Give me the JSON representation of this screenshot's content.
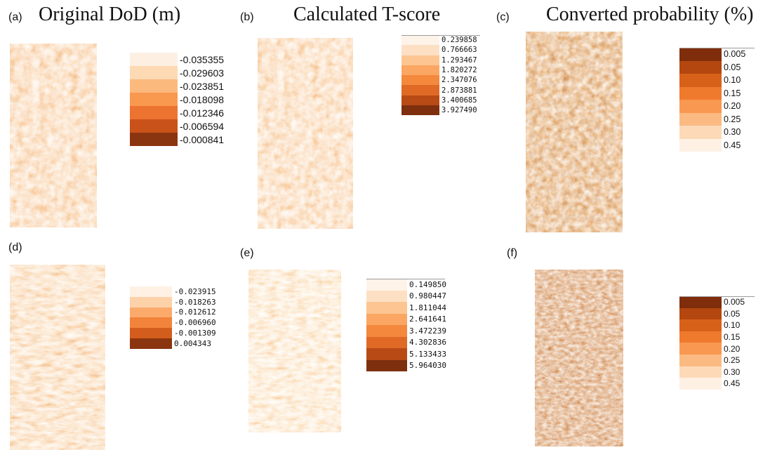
{
  "panels": {
    "a": {
      "label": "(a)",
      "title": "Original DoD (m)",
      "legend": [
        {
          "value": "-0.035355",
          "color": "#fdf0e2"
        },
        {
          "value": "-0.029603",
          "color": "#fdd9b4"
        },
        {
          "value": "-0.023851",
          "color": "#fcb97d"
        },
        {
          "value": "-0.018098",
          "color": "#f9984f"
        },
        {
          "value": "-0.012346",
          "color": "#ec7330"
        },
        {
          "value": "-0.006594",
          "color": "#c9521a"
        },
        {
          "value": "-0.000841",
          "color": "#8a3510"
        }
      ]
    },
    "b": {
      "label": "(b)",
      "title": "Calculated T-score",
      "legend": [
        {
          "value": "0.239858",
          "color": "#fef3e8"
        },
        {
          "value": "0.766663",
          "color": "#fde0c4"
        },
        {
          "value": "1.293467",
          "color": "#fcc592"
        },
        {
          "value": "1.820272",
          "color": "#fba663"
        },
        {
          "value": "2.347076",
          "color": "#f4883d"
        },
        {
          "value": "2.873881",
          "color": "#e06a25"
        },
        {
          "value": "3.400685",
          "color": "#b84a16"
        },
        {
          "value": "3.927490",
          "color": "#7e2f0e"
        }
      ]
    },
    "c": {
      "label": "(c)",
      "title": "Converted probability (%)",
      "legend": [
        {
          "value": "0.005",
          "color": "#7f2d0b"
        },
        {
          "value": "0.05",
          "color": "#b4470f"
        },
        {
          "value": "0.10",
          "color": "#d8611a"
        },
        {
          "value": "0.15",
          "color": "#ef7a2e"
        },
        {
          "value": "0.20",
          "color": "#f99851"
        },
        {
          "value": "0.25",
          "color": "#fcba83"
        },
        {
          "value": "0.30",
          "color": "#fdd9b8"
        },
        {
          "value": "0.45",
          "color": "#fef1e4"
        }
      ]
    },
    "d": {
      "label": "(d)",
      "title": "",
      "legend": [
        {
          "value": "-0.023915",
          "color": "#fef1e4"
        },
        {
          "value": "-0.018263",
          "color": "#fdd2a8"
        },
        {
          "value": "-0.012612",
          "color": "#fbaa6c"
        },
        {
          "value": "-0.006960",
          "color": "#f2833a"
        },
        {
          "value": "-0.001309",
          "color": "#d35d1d"
        },
        {
          "value": "0.004343",
          "color": "#8a3510"
        }
      ]
    },
    "e": {
      "label": "(e)",
      "title": "",
      "legend": [
        {
          "value": "0.149850",
          "color": "#fef3e8"
        },
        {
          "value": "0.980447",
          "color": "#fde0c4"
        },
        {
          "value": "1.811044",
          "color": "#fcc592"
        },
        {
          "value": "2.641641",
          "color": "#fba663"
        },
        {
          "value": "3.472239",
          "color": "#f4883d"
        },
        {
          "value": "4.302836",
          "color": "#e06a25"
        },
        {
          "value": "5.133433",
          "color": "#b84a16"
        },
        {
          "value": "5.964030",
          "color": "#7e2f0e"
        }
      ]
    },
    "f": {
      "label": "(f)",
      "title": "",
      "legend": [
        {
          "value": "0.005",
          "color": "#7f2d0b"
        },
        {
          "value": "0.05",
          "color": "#b4470f"
        },
        {
          "value": "0.10",
          "color": "#d8611a"
        },
        {
          "value": "0.15",
          "color": "#ef7a2e"
        },
        {
          "value": "0.20",
          "color": "#f99851"
        },
        {
          "value": "0.25",
          "color": "#fcba83"
        },
        {
          "value": "0.30",
          "color": "#fdd9b8"
        },
        {
          "value": "0.45",
          "color": "#fef1e4"
        }
      ]
    }
  }
}
